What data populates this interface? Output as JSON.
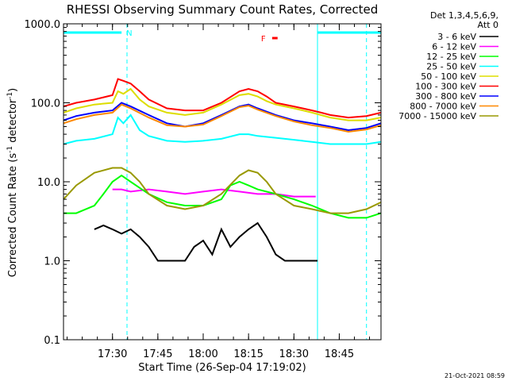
{
  "chart_data": {
    "type": "line",
    "title": "RHESSI Observing Summary Count Rates, Corrected",
    "xlabel": "Start Time (26-Sep-04 17:19:02)",
    "ylabel": "Corrected Count Rate (s",
    "ylabel_sup1": "-1",
    "ylabel_mid": " detector",
    "ylabel_sup2": "-1",
    "ylabel_end": ")",
    "y_scale": "log",
    "ylim": [
      0.1,
      1000
    ],
    "xlim_min": [
      17.23,
      18.98
    ],
    "y_ticks": [
      {
        "value": 0.1,
        "label": "0.1"
      },
      {
        "value": 1,
        "label": "1.0"
      },
      {
        "value": 10,
        "label": "10.0"
      },
      {
        "value": 100,
        "label": "100.0"
      },
      {
        "value": 1000,
        "label": "1000.0"
      }
    ],
    "x_ticks": [
      {
        "value": 17.5,
        "label": "17:30"
      },
      {
        "value": 17.75,
        "label": "17:45"
      },
      {
        "value": 18.0,
        "label": "18:00"
      },
      {
        "value": 18.25,
        "label": "18:15"
      },
      {
        "value": 18.5,
        "label": "18:30"
      },
      {
        "value": 18.75,
        "label": "18:45"
      }
    ],
    "legend": {
      "placement": "right",
      "header": [
        "Det 1,3,4,5,6,9,",
        "Att 0"
      ],
      "entries": [
        {
          "label": "3 - 6 keV",
          "color": "#000000"
        },
        {
          "label": "6 - 12 keV",
          "color": "#ff00ff"
        },
        {
          "label": "12 - 25 keV",
          "color": "#00ff00"
        },
        {
          "label": "25 - 50 keV",
          "color": "#00ffff"
        },
        {
          "label": "50 - 100 keV",
          "color": "#dddd00"
        },
        {
          "label": "100 - 300 keV",
          "color": "#ff0000"
        },
        {
          "label": "300 - 800 keV",
          "color": "#0000ff"
        },
        {
          "label": "800 - 7000 keV",
          "color": "#ff8800"
        },
        {
          "label": "7000 - 15000 keV",
          "color": "#999900"
        }
      ]
    },
    "flags": [
      {
        "label": "N",
        "color": "#00ffff",
        "x_start": 17.23,
        "x_end": 17.55
      },
      {
        "label": "F",
        "color": "#ff0000",
        "x_start": 18.38,
        "x_end": 18.41
      }
    ],
    "attenuator_lines": [
      17.58,
      18.9
    ],
    "saa_lines": [
      17.23,
      18.63
    ],
    "series": [
      {
        "color": "#ff0000",
        "x": [
          17.23,
          17.3,
          17.4,
          17.5,
          17.53,
          17.56,
          17.6,
          17.65,
          17.7,
          17.8,
          17.9,
          18.0,
          18.1,
          18.2,
          18.25,
          18.3,
          18.35,
          18.4,
          18.5,
          18.6,
          18.65,
          18.7,
          18.8,
          18.9,
          18.98
        ],
        "y": [
          90,
          100,
          110,
          125,
          200,
          190,
          175,
          140,
          110,
          85,
          80,
          80,
          100,
          140,
          150,
          140,
          120,
          100,
          90,
          80,
          75,
          70,
          65,
          68,
          75
        ]
      },
      {
        "color": "#dddd00",
        "x": [
          17.23,
          17.3,
          17.4,
          17.5,
          17.53,
          17.56,
          17.6,
          17.65,
          17.7,
          17.8,
          17.9,
          18.0,
          18.1,
          18.2,
          18.25,
          18.3,
          18.35,
          18.4,
          18.5,
          18.6,
          18.7,
          18.8,
          18.9,
          18.98
        ],
        "y": [
          75,
          85,
          95,
          100,
          140,
          130,
          150,
          110,
          90,
          75,
          70,
          75,
          95,
          125,
          130,
          120,
          105,
          95,
          85,
          75,
          65,
          60,
          60,
          65
        ]
      },
      {
        "color": "#0000ff",
        "x": [
          17.23,
          17.3,
          17.4,
          17.5,
          17.55,
          17.6,
          17.7,
          17.8,
          17.9,
          18.0,
          18.1,
          18.2,
          18.25,
          18.3,
          18.4,
          18.5,
          18.6,
          18.7,
          18.8,
          18.9,
          18.98
        ],
        "y": [
          60,
          68,
          75,
          80,
          100,
          90,
          70,
          55,
          50,
          55,
          70,
          90,
          95,
          85,
          70,
          60,
          55,
          50,
          45,
          48,
          55
        ]
      },
      {
        "color": "#ff8800",
        "x": [
          17.23,
          17.3,
          17.4,
          17.5,
          17.55,
          17.6,
          17.7,
          17.8,
          17.9,
          18.0,
          18.1,
          18.2,
          18.25,
          18.3,
          18.4,
          18.5,
          18.6,
          18.7,
          18.8,
          18.9,
          18.98
        ],
        "y": [
          55,
          62,
          70,
          75,
          95,
          85,
          65,
          52,
          50,
          53,
          68,
          88,
          92,
          82,
          68,
          58,
          52,
          48,
          43,
          46,
          52
        ]
      },
      {
        "color": "#00ffff",
        "x": [
          17.23,
          17.3,
          17.4,
          17.5,
          17.53,
          17.56,
          17.6,
          17.65,
          17.7,
          17.8,
          17.9,
          18.0,
          18.1,
          18.2,
          18.25,
          18.3,
          18.4,
          18.5,
          18.6,
          18.7,
          18.8,
          18.9,
          18.98
        ],
        "y": [
          30,
          33,
          35,
          40,
          65,
          55,
          70,
          45,
          38,
          33,
          32,
          33,
          35,
          40,
          40,
          38,
          36,
          34,
          32,
          30,
          30,
          30,
          32
        ]
      },
      {
        "color": "#ff00ff",
        "x": [
          17.5,
          17.55,
          17.6,
          17.7,
          17.8,
          17.9,
          18.0,
          18.1,
          18.2,
          18.3,
          18.4,
          18.5,
          18.6,
          18.62
        ],
        "y": [
          8,
          8,
          7.5,
          8,
          7.5,
          7,
          7.5,
          8,
          7.5,
          7,
          7,
          6.5,
          6.5,
          6.5
        ]
      },
      {
        "color": "#00ff00",
        "x": [
          17.23,
          17.3,
          17.4,
          17.45,
          17.5,
          17.55,
          17.6,
          17.7,
          17.8,
          17.9,
          18.0,
          18.1,
          18.15,
          18.2,
          18.25,
          18.3,
          18.4,
          18.5,
          18.6,
          18.7,
          18.8,
          18.9,
          18.98
        ],
        "y": [
          4,
          4,
          5,
          7,
          10,
          12,
          10,
          7,
          5.5,
          5,
          5,
          6,
          9,
          10,
          9,
          8,
          7,
          6,
          5,
          4,
          3.5,
          3.5,
          4
        ]
      },
      {
        "color": "#999900",
        "x": [
          17.23,
          17.3,
          17.4,
          17.5,
          17.55,
          17.6,
          17.65,
          17.7,
          17.8,
          17.9,
          18.0,
          18.1,
          18.2,
          18.25,
          18.3,
          18.35,
          18.4,
          18.5,
          18.6,
          18.7,
          18.8,
          18.9,
          18.98
        ],
        "y": [
          6,
          9,
          13,
          15,
          15,
          13,
          10,
          7,
          5,
          4.5,
          5,
          7,
          12,
          14,
          13,
          10,
          7,
          5,
          4.5,
          4,
          4,
          4.5,
          5.5
        ]
      },
      {
        "color": "#000000",
        "x": [
          17.4,
          17.45,
          17.5,
          17.55,
          17.6,
          17.65,
          17.7,
          17.75,
          17.8,
          17.85,
          17.9,
          17.95,
          18.0,
          18.05,
          18.1,
          18.15,
          18.2,
          18.25,
          18.3,
          18.35,
          18.4,
          18.45,
          18.5,
          18.55,
          18.6,
          18.63
        ],
        "y": [
          2.5,
          2.8,
          2.5,
          2.2,
          2.5,
          2,
          1.5,
          1,
          1,
          1,
          1,
          1.5,
          1.8,
          1.2,
          2.5,
          1.5,
          2,
          2.5,
          3,
          2,
          1.2,
          1,
          1,
          1,
          1,
          1
        ]
      }
    ]
  },
  "footer": {
    "timestamp": "21-Oct-2021 08:59"
  }
}
